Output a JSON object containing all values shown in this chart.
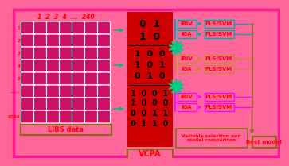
{
  "bg_color": "#FF6699",
  "outer_border_color": "#FF1493",
  "cell_color": "#CC1166",
  "red_block_color": "#CC0000",
  "arrow_colors_grid": [
    "#00AA88",
    "#00AA88",
    "#00AA88"
  ],
  "group_colors": [
    "#00AAAA",
    "#CC8833",
    "#FF00FF"
  ],
  "burst_color": "#00CC88",
  "bottom_box_color": "#8B6914",
  "red_text_color": "#FF0000",
  "black_text_color": "#000000",
  "white_color": "#FFFFFF",
  "libs_label": "LIBS data",
  "vcpa_label": "VCPA",
  "best_model_label": "Best model",
  "var_sel_label": "Variable selection and\nmodel comparison",
  "col_header": "1  2  3  4  ...  240",
  "row_labels": [
    "1",
    "2",
    "3",
    "4",
    "5",
    "......",
    "6144"
  ],
  "group1_binary": [
    [
      "0",
      "1"
    ],
    [
      "1",
      "0"
    ]
  ],
  "group2_binary": [
    [
      "1",
      "0",
      "0"
    ],
    [
      "1",
      "0",
      "1"
    ],
    [
      "0",
      "1",
      "0"
    ]
  ],
  "group3_binary": [
    [
      "1",
      "0",
      "0",
      "1"
    ],
    [
      "1",
      "0",
      "0",
      "0"
    ],
    [
      "0",
      "0",
      "1",
      "1"
    ],
    [
      "0",
      "1",
      "1",
      "0"
    ]
  ]
}
